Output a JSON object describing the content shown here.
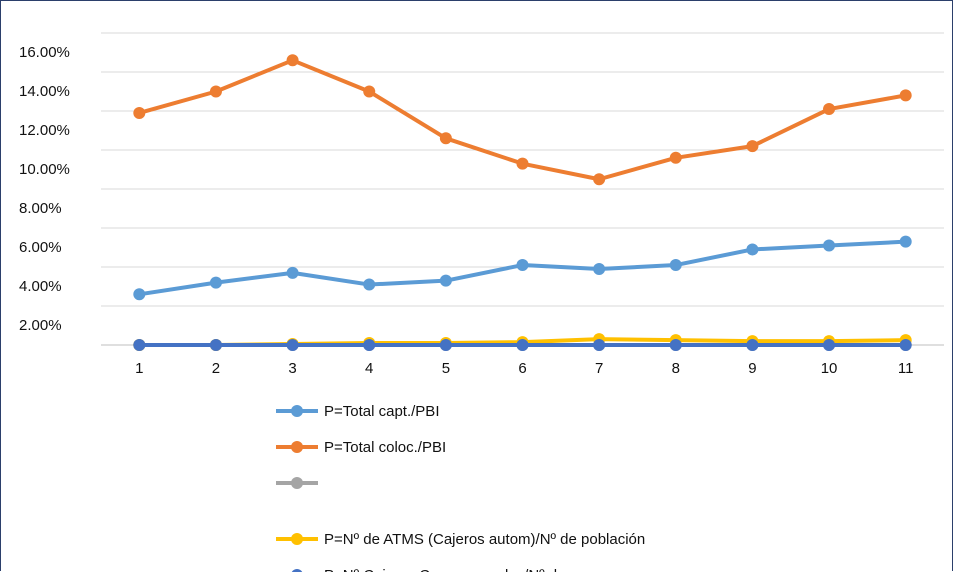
{
  "chart_data": {
    "type": "line",
    "x": [
      1,
      2,
      3,
      4,
      5,
      6,
      7,
      8,
      9,
      10,
      11
    ],
    "y_ticks": [
      "2.00%",
      "4.00%",
      "6.00%",
      "8.00%",
      "10.00%",
      "12.00%",
      "14.00%",
      "16.00%"
    ],
    "ylim": [
      0,
      16
    ],
    "grid": true,
    "legend_position": "bottom-left",
    "series": [
      {
        "name": "P=Total capt./PBI",
        "color": "#5b9bd5",
        "values": [
          2.6,
          3.2,
          3.7,
          3.1,
          3.3,
          4.1,
          3.9,
          4.1,
          4.9,
          5.1,
          5.3
        ]
      },
      {
        "name": "P=Total coloc./PBI",
        "color": "#ed7d31",
        "values": [
          11.9,
          13.0,
          14.6,
          13.0,
          10.6,
          9.3,
          8.5,
          9.6,
          10.2,
          12.1,
          12.8
        ]
      },
      {
        "name": "",
        "color": "#a5a5a5",
        "values": [
          0.0,
          0.0,
          0.0,
          0.0,
          0.0,
          0.0,
          0.0,
          0.0,
          0.0,
          0.0,
          0.0
        ]
      },
      {
        "name": "P=Nº de ATMS (Cajeros autom)/Nº de población",
        "color": "#ffc000",
        "values": [
          0.0,
          0.0,
          0.05,
          0.1,
          0.1,
          0.15,
          0.3,
          0.25,
          0.2,
          0.2,
          0.25
        ]
      },
      {
        "name": "P=Nº Cajeros Corresponsales/Nº de",
        "color": "#4472c4",
        "values": [
          0.0,
          0.0,
          0.0,
          0.0,
          0.0,
          0.0,
          0.0,
          0.0,
          0.0,
          0.0,
          0.0
        ]
      }
    ]
  }
}
